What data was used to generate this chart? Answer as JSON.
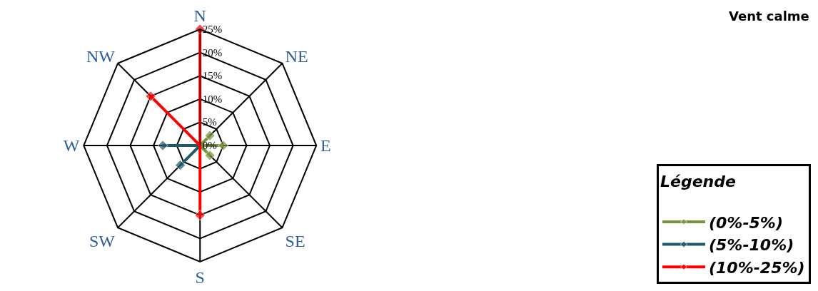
{
  "chart_data": {
    "type": "radar",
    "categories": [
      "N",
      "NE",
      "E",
      "SE",
      "S",
      "SW",
      "W",
      "NW"
    ],
    "series": [
      {
        "name": "(0%-5%)",
        "color": "#77933c",
        "values": [
          null,
          3,
          5,
          3,
          null,
          null,
          null,
          null
        ]
      },
      {
        "name": "(5%-10%)",
        "color": "#215968",
        "values": [
          null,
          null,
          null,
          null,
          null,
          6,
          8,
          null
        ]
      },
      {
        "name": "(10%-25%)",
        "color": "#ff0000",
        "values": [
          25,
          null,
          null,
          null,
          15,
          null,
          null,
          15
        ]
      }
    ],
    "ylim": [
      0,
      25
    ],
    "yticks": [
      {
        "value": 0,
        "label": "0%"
      },
      {
        "value": 5,
        "label": "5%"
      },
      {
        "value": 10,
        "label": "10%"
      },
      {
        "value": 15,
        "label": "15%"
      },
      {
        "value": 20,
        "label": "20%"
      },
      {
        "value": 25,
        "label": "25%"
      }
    ],
    "legend_title": "Légende",
    "legend": "bottom right",
    "marker": "diamond",
    "line_style": "solid",
    "annotations": [
      "Vent calme"
    ]
  }
}
